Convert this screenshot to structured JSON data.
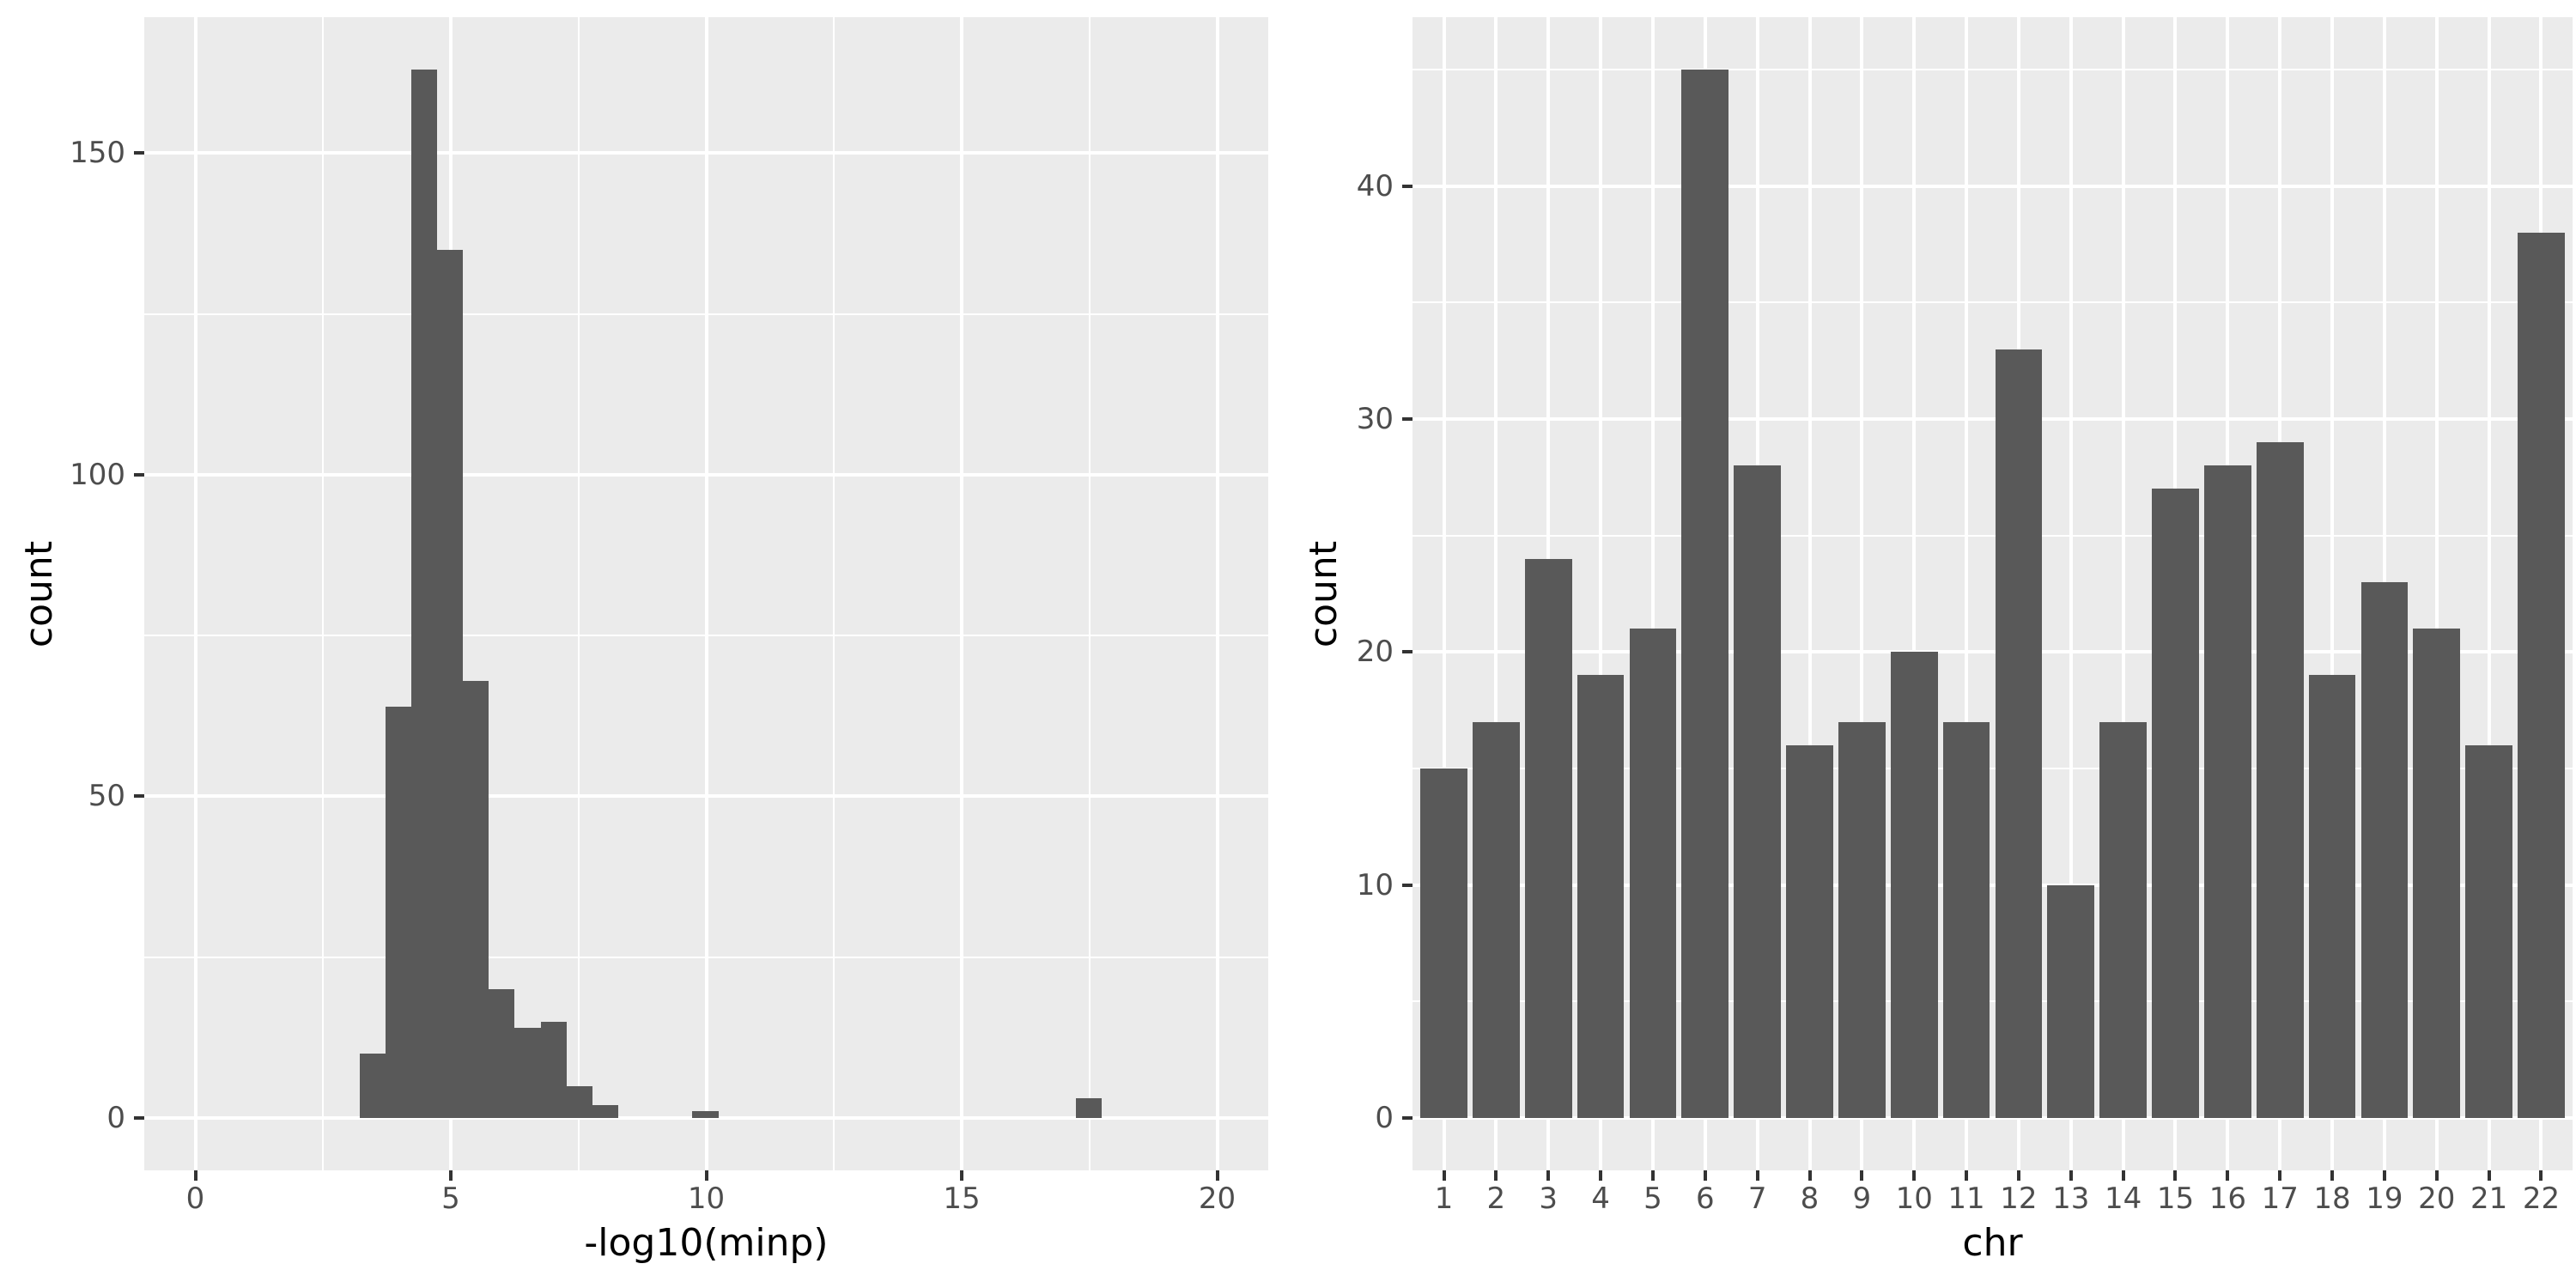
{
  "style": {
    "panel_background": "#EBEBEB",
    "gridline_color": "#FFFFFF",
    "bar_fill": "#595959",
    "tick_text_color": "#4D4D4D",
    "axis_title_color": "#000000",
    "tick_mark_color": "#333333"
  },
  "chart_data": [
    {
      "type": "bar",
      "subtype": "histogram",
      "title": "",
      "xlabel": "-log10(minp)",
      "ylabel": "count",
      "xlim": [
        -1,
        21
      ],
      "ylim": [
        -8.15,
        171.15
      ],
      "grid": "on",
      "legend": "none",
      "x_tick_values": [
        0,
        5,
        10,
        15,
        20
      ],
      "x_tick_labels": [
        "0",
        "5",
        "10",
        "15",
        "20"
      ],
      "x_minor_values": [
        2.5,
        7.5,
        12.5,
        17.5
      ],
      "y_tick_values": [
        0,
        50,
        100,
        150
      ],
      "y_tick_labels": [
        "0",
        "50",
        "100",
        "150"
      ],
      "y_minor_values": [
        25,
        75,
        125
      ],
      "bins": [
        {
          "x0": 3.217,
          "x1": 3.723,
          "count": 10
        },
        {
          "x0": 3.723,
          "x1": 4.228,
          "count": 64
        },
        {
          "x0": 4.228,
          "x1": 4.734,
          "count": 163
        },
        {
          "x0": 4.734,
          "x1": 5.24,
          "count": 135
        },
        {
          "x0": 5.24,
          "x1": 5.746,
          "count": 68
        },
        {
          "x0": 5.746,
          "x1": 6.251,
          "count": 20
        },
        {
          "x0": 6.251,
          "x1": 6.757,
          "count": 14
        },
        {
          "x0": 6.757,
          "x1": 7.263,
          "count": 15
        },
        {
          "x0": 7.263,
          "x1": 7.768,
          "count": 5
        },
        {
          "x0": 7.768,
          "x1": 8.274,
          "count": 2
        },
        {
          "x0": 9.731,
          "x1": 10.237,
          "count": 1
        },
        {
          "x0": 17.238,
          "x1": 17.744,
          "count": 3
        }
      ]
    },
    {
      "type": "bar",
      "title": "",
      "xlabel": "chr",
      "ylabel": "count",
      "ylim": [
        -2.25,
        47.25
      ],
      "grid": "on",
      "legend": "none",
      "categories": [
        "1",
        "2",
        "3",
        "4",
        "5",
        "6",
        "7",
        "8",
        "9",
        "10",
        "11",
        "12",
        "13",
        "14",
        "15",
        "16",
        "17",
        "18",
        "19",
        "20",
        "21",
        "22"
      ],
      "values": [
        15,
        17,
        24,
        19,
        21,
        45,
        28,
        16,
        17,
        20,
        17,
        33,
        10,
        17,
        27,
        28,
        29,
        19,
        23,
        21,
        16,
        38
      ],
      "y_tick_values": [
        0,
        10,
        20,
        30,
        40
      ],
      "y_tick_labels": [
        "0",
        "10",
        "20",
        "30",
        "40"
      ],
      "y_minor_values": [
        5,
        15,
        25,
        35,
        45
      ],
      "bar_width_fraction": 0.9,
      "category_expand": 0.6
    }
  ]
}
